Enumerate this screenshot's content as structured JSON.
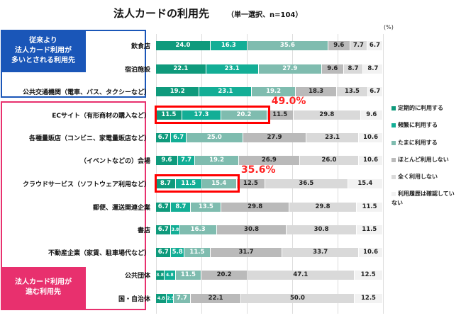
{
  "chart_data": {
    "type": "bar",
    "stacked": true,
    "orientation": "horizontal",
    "title": "法人カードの利用先",
    "subtitle": "（単一選択、n=104）",
    "unit": "(%)",
    "xlim": [
      0,
      100
    ],
    "categories": [
      "飲食店",
      "宿泊施設",
      "公共交通機関（電車、バス、タクシーなど）",
      "ECサイト（有形商材の購入など）",
      "各種量販店（コンビニ、家電量販店など）",
      "（イベントなどの）会場",
      "クラウドサービス（ソフトウェア利用など）",
      "郵便、運送関連企業",
      "書店",
      "不動産企業（家賃、駐車場代など）",
      "公共団体",
      "国・自治体"
    ],
    "series": [
      {
        "name": "定期的に利用する",
        "color": "#0f9a7c",
        "values": [
          24.0,
          22.1,
          19.2,
          11.5,
          6.7,
          9.6,
          8.7,
          6.7,
          6.7,
          6.7,
          3.8,
          4.8
        ]
      },
      {
        "name": "頻繁に利用する",
        "color": "#13ae96",
        "values": [
          16.3,
          23.1,
          23.1,
          17.3,
          6.7,
          7.7,
          11.5,
          8.7,
          3.8,
          5.8,
          4.8,
          2.9
        ]
      },
      {
        "name": "たまに利用する",
        "color": "#7fbcaf",
        "values": [
          35.6,
          27.9,
          19.2,
          20.2,
          25.0,
          19.2,
          15.4,
          13.5,
          16.3,
          11.5,
          11.5,
          7.7
        ]
      },
      {
        "name": "ほとんど利用しない",
        "color": "#bababa",
        "values": [
          9.6,
          9.6,
          18.3,
          11.5,
          27.9,
          26.9,
          12.5,
          29.8,
          30.8,
          31.7,
          20.2,
          22.1
        ]
      },
      {
        "name": "全く利用しない",
        "color": "#d9d9d9",
        "values": [
          7.7,
          8.7,
          13.5,
          29.8,
          23.1,
          26.0,
          36.5,
          29.8,
          30.8,
          33.7,
          47.1,
          50.0
        ]
      },
      {
        "name": "利用履歴は確認していない",
        "color": "#f2f2f2",
        "values": [
          6.7,
          8.7,
          6.7,
          9.6,
          10.6,
          10.6,
          15.4,
          11.5,
          11.5,
          10.6,
          12.5,
          12.5
        ]
      }
    ],
    "annotations": [
      {
        "row": 3,
        "text": "49.0%"
      },
      {
        "row": 6,
        "text": "35.6%"
      }
    ],
    "groups": [
      {
        "label": "従来より法人カード利用が多いとされる利用先",
        "lines": [
          "従来より",
          "法人カード利用が",
          "多いとされる利用先"
        ]
      },
      {
        "label": "法人カード利用が進む利用先",
        "lines": [
          "法人カード利用が",
          "進む利用先"
        ]
      }
    ]
  }
}
